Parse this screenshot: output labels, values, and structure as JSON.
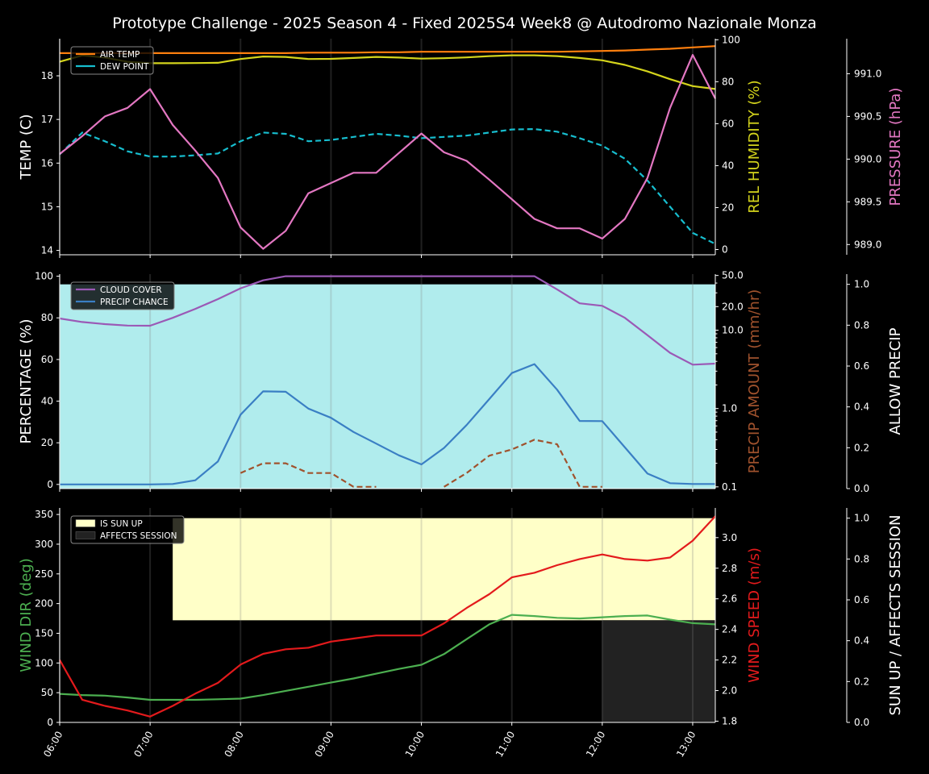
{
  "title": "Prototype Challenge  - 2025 Season 4 - Fixed 2025S4 Week8 @ Autodromo Nazionale Monza",
  "colors": {
    "background": "#000000",
    "foreground": "#ffffff",
    "air_temp": "#ff7f0e",
    "dew_point": "#17becf",
    "humidity": "#d4d41c",
    "pressure": "#e377c2",
    "cloud": "#9b59b6",
    "precip_chance": "#3a7fc4",
    "precip_amount": "#a0522d",
    "allow_precip_fill": "#b0eced",
    "wind_dir": "#4caf50",
    "wind_speed": "#e31a1c",
    "sun_up_fill": "#ffffc8",
    "affects_fill": "#222222"
  },
  "time_ticks": [
    "06:00",
    "07:00",
    "08:00",
    "09:00",
    "10:00",
    "11:00",
    "12:00",
    "13:00"
  ],
  "chart_data": [
    {
      "type": "line",
      "x": [
        "06:00",
        "06:15",
        "06:30",
        "06:45",
        "07:00",
        "07:15",
        "07:30",
        "07:45",
        "08:00",
        "08:15",
        "08:30",
        "08:45",
        "09:00",
        "09:15",
        "09:30",
        "09:45",
        "10:00",
        "10:15",
        "10:30",
        "10:45",
        "11:00",
        "11:15",
        "11:30",
        "11:45",
        "12:00",
        "12:15",
        "12:30",
        "12:45",
        "13:00",
        "13:15"
      ],
      "xlim": [
        "06:00",
        "13:15"
      ],
      "ylabel": "TEMP (C)",
      "ylim": [
        13.9,
        18.85
      ],
      "yticks": [
        "14",
        "15",
        "16",
        "17",
        "18"
      ],
      "ylabel2": "REL HUMIDITY (%)",
      "y2lim": [
        -2.5,
        100.5
      ],
      "y2ticks": [
        "0",
        "20",
        "40",
        "60",
        "80",
        "100"
      ],
      "ylabel3": "PRESSURE (hPa)",
      "y3lim": [
        988.88,
        991.41
      ],
      "y3ticks": [
        "989.0",
        "989.5",
        "990.0",
        "990.5",
        "991.0"
      ],
      "legend": "top-left",
      "series": [
        {
          "name": "AIR TEMP",
          "axis": "y",
          "color_key": "air_temp",
          "dashed": false,
          "values": [
            18.52,
            18.52,
            18.52,
            18.52,
            18.52,
            18.52,
            18.52,
            18.52,
            18.52,
            18.52,
            18.52,
            18.53,
            18.53,
            18.53,
            18.54,
            18.54,
            18.55,
            18.55,
            18.55,
            18.55,
            18.55,
            18.55,
            18.55,
            18.56,
            18.57,
            18.58,
            18.6,
            18.62,
            18.65,
            18.68
          ]
        },
        {
          "name": "DEW POINT",
          "axis": "y",
          "color_key": "dew_point",
          "dashed": true,
          "values": [
            16.2,
            16.7,
            16.5,
            16.27,
            16.15,
            16.15,
            16.18,
            16.22,
            16.5,
            16.7,
            16.67,
            16.5,
            16.53,
            16.6,
            16.67,
            16.63,
            16.57,
            16.6,
            16.63,
            16.7,
            16.77,
            16.78,
            16.72,
            16.57,
            16.4,
            16.1,
            15.6,
            15.0,
            14.4,
            14.15
          ]
        },
        {
          "name": "REL HUMIDITY",
          "axis": "y2",
          "color_key": "humidity",
          "dashed": false,
          "values": [
            89.5,
            92.5,
            91.5,
            89.5,
            88.8,
            88.8,
            88.9,
            89.0,
            90.8,
            92.0,
            91.8,
            90.8,
            90.9,
            91.3,
            91.8,
            91.5,
            91.0,
            91.2,
            91.6,
            92.2,
            92.6,
            92.6,
            92.2,
            91.3,
            90.2,
            88.0,
            84.9,
            81.2,
            77.9,
            76.5
          ]
        },
        {
          "name": "PRESSURE",
          "axis": "y3",
          "color_key": "pressure",
          "dashed": false,
          "values": [
            990.06,
            990.27,
            990.5,
            990.6,
            990.82,
            990.4,
            990.1,
            989.78,
            989.2,
            988.95,
            989.16,
            989.6,
            989.72,
            989.84,
            989.84,
            990.07,
            990.3,
            990.08,
            989.98,
            989.76,
            989.53,
            989.3,
            989.19,
            989.19,
            989.07,
            989.3,
            989.78,
            990.6,
            991.22,
            990.71
          ]
        }
      ]
    },
    {
      "type": "line",
      "x": [
        "06:00",
        "06:15",
        "06:30",
        "06:45",
        "07:00",
        "07:15",
        "07:30",
        "07:45",
        "08:00",
        "08:15",
        "08:30",
        "08:45",
        "09:00",
        "09:15",
        "09:30",
        "09:45",
        "10:00",
        "10:15",
        "10:30",
        "10:45",
        "11:00",
        "11:15",
        "11:30",
        "11:45",
        "12:00",
        "12:15",
        "12:30",
        "12:45",
        "13:00",
        "13:15"
      ],
      "xlim": [
        "06:00",
        "13:15"
      ],
      "ylabel": "PERCENTAGE (%)",
      "ylim": [
        -2,
        101
      ],
      "yticks": [
        "0",
        "20",
        "40",
        "60",
        "80",
        "100"
      ],
      "ylabel2": "PRECIP AMOUNT (mm/hr)",
      "y2scale": "log",
      "y2lim": [
        0.095,
        52
      ],
      "y2ticks": [
        "0.1",
        "1.0",
        "10.0",
        "20.0",
        "50.0"
      ],
      "ylabel3": "ALLOW PRECIP",
      "y3lim": [
        0,
        1.05
      ],
      "y3ticks": [
        "0.0",
        "0.2",
        "0.4",
        "0.6",
        "0.8",
        "1.0"
      ],
      "legend": "top-left",
      "allow_precip": 1.0,
      "series": [
        {
          "name": "CLOUD COVER",
          "axis": "y",
          "color_key": "cloud",
          "dashed": false,
          "values": [
            79.7,
            78,
            77,
            76.3,
            76.2,
            80,
            84.3,
            89,
            94.2,
            98,
            100,
            100,
            100,
            100,
            100,
            100,
            100,
            100,
            100,
            100,
            100,
            100,
            93.7,
            87,
            85.8,
            80,
            71.7,
            63.2,
            57.5,
            58
          ]
        },
        {
          "name": "PRECIP CHANCE",
          "axis": "y",
          "color_key": "precip_chance",
          "dashed": false,
          "values": [
            0,
            0,
            0,
            0,
            0,
            0.2,
            2,
            11,
            33.5,
            44.7,
            44.5,
            36.4,
            32,
            25.2,
            19.6,
            14,
            9.6,
            17.5,
            28.5,
            41,
            53.5,
            57.8,
            45.5,
            30.5,
            30.4,
            17.8,
            5.2,
            0.6,
            0.2,
            0.2
          ]
        },
        {
          "name": "PRECIP AMOUNT",
          "axis": "y2",
          "color_key": "precip_amount",
          "dashed": true,
          "values": [
            null,
            null,
            null,
            null,
            null,
            null,
            null,
            null,
            0.15,
            0.2,
            0.2,
            0.15,
            0.15,
            0.1,
            0.1,
            null,
            null,
            0.1,
            0.15,
            0.25,
            0.3,
            0.4,
            0.35,
            0.1,
            0.1,
            null,
            null,
            null,
            null,
            null
          ]
        }
      ]
    },
    {
      "type": "line",
      "x": [
        "06:00",
        "06:15",
        "06:30",
        "06:45",
        "07:00",
        "07:15",
        "07:30",
        "07:45",
        "08:00",
        "08:15",
        "08:30",
        "08:45",
        "09:00",
        "09:15",
        "09:30",
        "09:45",
        "10:00",
        "10:15",
        "10:30",
        "10:45",
        "11:00",
        "11:15",
        "11:30",
        "11:45",
        "12:00",
        "12:15",
        "12:30",
        "12:45",
        "13:00",
        "13:15"
      ],
      "xlim": [
        "06:00",
        "13:15"
      ],
      "ylabel": "WIND DIR (deg)",
      "ylim": [
        0,
        361
      ],
      "yticks": [
        "0",
        "50",
        "100",
        "150",
        "200",
        "250",
        "300",
        "350"
      ],
      "ylabel2": "WIND SPEED (m/s)",
      "y2lim": [
        1.792,
        3.194
      ],
      "y2ticks": [
        "1.8",
        "2.0",
        "2.2",
        "2.4",
        "2.6",
        "2.8",
        "3.0"
      ],
      "ylabel3": "SUN UP / AFFECTS SESSION",
      "y3lim": [
        0,
        1.05
      ],
      "y3ticks": [
        "0.0",
        "0.2",
        "0.4",
        "0.6",
        "0.8",
        "1.0"
      ],
      "legend": "top-left",
      "sun_up": {
        "start": "07:15",
        "end": "13:15",
        "value": 1.0,
        "name": "IS SUN UP"
      },
      "affects_session": {
        "start": "12:00",
        "end": "13:15",
        "value": 1.0,
        "name": "AFFECTS SESSION"
      },
      "series": [
        {
          "name": "WIND DIR",
          "axis": "y",
          "color_key": "wind_dir",
          "dashed": false,
          "values": [
            48,
            46,
            45,
            42,
            38,
            38,
            38,
            39,
            40,
            46,
            53,
            60,
            67,
            74,
            82,
            90,
            97,
            115,
            140,
            165,
            181,
            179,
            176,
            175,
            177,
            179,
            180,
            173,
            167,
            165
          ]
        },
        {
          "name": "WIND SPEED",
          "axis": "y2",
          "color_key": "wind_speed",
          "dashed": false,
          "values": [
            2.2,
            1.94,
            1.9,
            1.87,
            1.83,
            1.9,
            1.98,
            2.05,
            2.17,
            2.24,
            2.27,
            2.28,
            2.32,
            2.34,
            2.36,
            2.36,
            2.36,
            2.44,
            2.54,
            2.63,
            2.74,
            2.77,
            2.82,
            2.86,
            2.89,
            2.86,
            2.85,
            2.87,
            2.98,
            3.14
          ]
        }
      ]
    }
  ]
}
